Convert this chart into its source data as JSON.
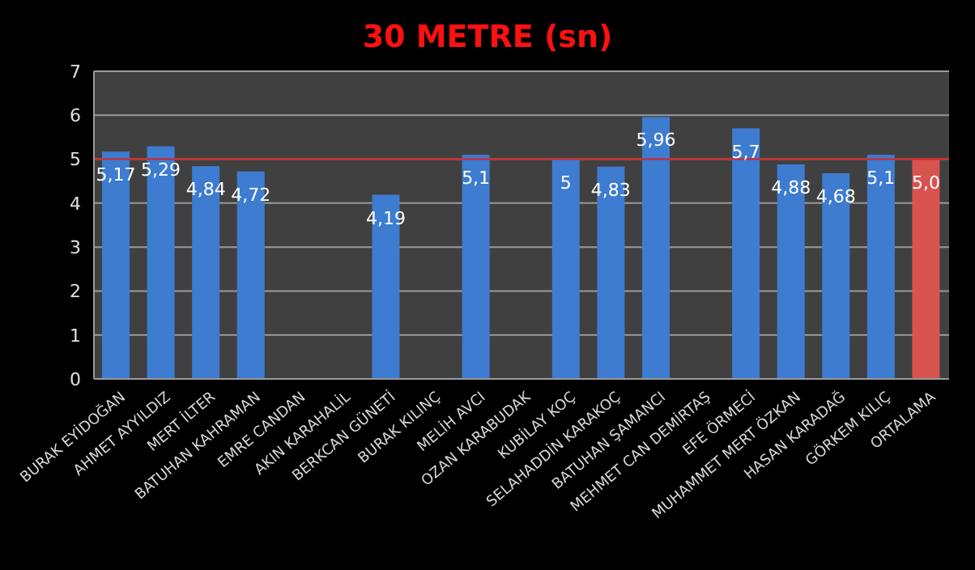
{
  "chart_data": {
    "type": "bar",
    "title": "30 METRE (sn)",
    "categories": [
      "BURAK EYİDOĞAN",
      "AHMET AYYILDIZ",
      "MERT İLTER",
      "BATUHAN KAHRAMAN",
      "EMRE CANDAN",
      "AKIN KARAHALİL",
      "BERKCAN GÜNETİ",
      "BURAK KILINÇ",
      "MELİH AVCI",
      "OZAN KARABUDAK",
      "KUBİLAY KOÇ",
      "SELAHADDİN KARAKOÇ",
      "BATUHAN ŞAMANCI",
      "MEHMET CAN DEMİRTAŞ",
      "EFE ÖRMECİ",
      "MUHAMMET MERT ÖZKAN",
      "HASAN KARADAĞ",
      "GÖRKEM KILIÇ",
      "ORTALAMA"
    ],
    "values": [
      5.17,
      5.29,
      4.84,
      4.72,
      null,
      null,
      4.19,
      null,
      5.1,
      null,
      5,
      4.83,
      5.96,
      null,
      5.7,
      4.88,
      4.68,
      5.1,
      5.0
    ],
    "colors": [
      "#3d7cd0",
      "#3d7cd0",
      "#3d7cd0",
      "#3d7cd0",
      "#3d7cd0",
      "#3d7cd0",
      "#3d7cd0",
      "#3d7cd0",
      "#3d7cd0",
      "#3d7cd0",
      "#3d7cd0",
      "#3d7cd0",
      "#3d7cd0",
      "#3d7cd0",
      "#3d7cd0",
      "#3d7cd0",
      "#3d7cd0",
      "#3d7cd0",
      "#d9534f"
    ],
    "value_labels": [
      "5,17",
      "5,29",
      "4,84",
      "4,72",
      null,
      null,
      "4,19",
      null,
      "5,1",
      null,
      "5",
      "4,83",
      "5,96",
      null,
      "5,7",
      "4,88",
      "4,68",
      "5,1",
      "5,0"
    ],
    "ylim": [
      0,
      7
    ],
    "yticks": [
      0,
      1,
      2,
      3,
      4,
      5,
      6,
      7
    ],
    "grid": "y",
    "legend": false,
    "ref_lines": [
      {
        "axis": "y",
        "value": 5,
        "color": "#e02020"
      }
    ]
  }
}
